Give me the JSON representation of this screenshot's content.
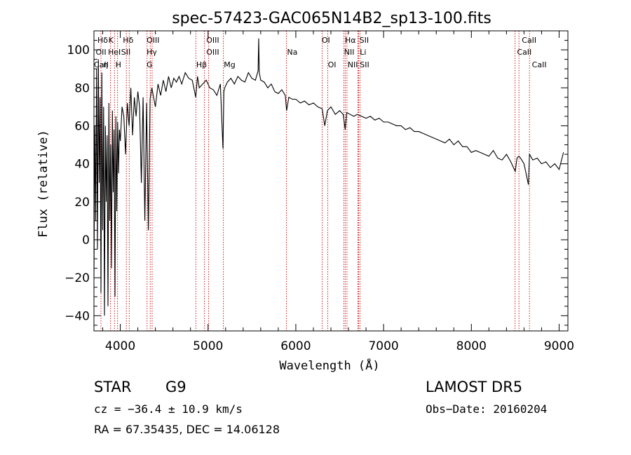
{
  "chart_data": {
    "type": "line",
    "title": "spec-57423-GAC065N14B2_sp13-100.fits",
    "xlabel": "Wavelength (Å)",
    "ylabel": "Flux (relative)",
    "xlim": [
      3700,
      9100
    ],
    "ylim": [
      -48,
      110
    ],
    "xticks": [
      4000,
      5000,
      6000,
      7000,
      8000,
      9000
    ],
    "yticks": [
      -40,
      -20,
      0,
      20,
      40,
      60,
      80,
      100
    ],
    "xtick_labels": [
      "4000",
      "5000",
      "6000",
      "7000",
      "8000",
      "9000"
    ],
    "ytick_labels": [
      "−40",
      "−20",
      "0",
      "20",
      "40",
      "60",
      "80",
      "100"
    ],
    "grid": false,
    "series": [
      {
        "x": [
          3700,
          3710,
          3720,
          3730,
          3740,
          3750,
          3760,
          3770,
          3780,
          3790,
          3800,
          3810,
          3820,
          3830,
          3840,
          3850,
          3860,
          3870,
          3880,
          3890,
          3900,
          3910,
          3920,
          3930,
          3940,
          3950,
          3960,
          3970,
          3980,
          3990,
          4000,
          4020,
          4040,
          4060,
          4080,
          4100,
          4120,
          4140,
          4160,
          4180,
          4200,
          4220,
          4240,
          4260,
          4280,
          4300,
          4320,
          4340,
          4360,
          4380,
          4400,
          4430,
          4460,
          4490,
          4520,
          4550,
          4580,
          4610,
          4640,
          4670,
          4700,
          4740,
          4780,
          4820,
          4860,
          4880,
          4900,
          4940,
          4980,
          5020,
          5060,
          5100,
          5140,
          5170,
          5180,
          5190,
          5220,
          5260,
          5300,
          5340,
          5380,
          5420,
          5460,
          5500,
          5540,
          5570,
          5577,
          5584,
          5600,
          5640,
          5680,
          5720,
          5760,
          5800,
          5840,
          5880,
          5895,
          5920,
          5960,
          6000,
          6050,
          6100,
          6150,
          6200,
          6250,
          6300,
          6330,
          6360,
          6400,
          6450,
          6500,
          6540,
          6563,
          6580,
          6620,
          6660,
          6700,
          6750,
          6800,
          6850,
          6900,
          6950,
          7000,
          7050,
          7100,
          7150,
          7200,
          7250,
          7300,
          7350,
          7400,
          7450,
          7500,
          7550,
          7600,
          7650,
          7700,
          7750,
          7800,
          7850,
          7900,
          7950,
          8000,
          8050,
          8100,
          8150,
          8200,
          8250,
          8300,
          8350,
          8400,
          8450,
          8500,
          8520,
          8542,
          8560,
          8600,
          8650,
          8662,
          8700,
          8750,
          8800,
          8850,
          8900,
          8950,
          9000,
          9050
        ],
        "y": [
          -20,
          60,
          10,
          90,
          -5,
          95,
          30,
          75,
          -28,
          88,
          5,
          70,
          -40,
          60,
          20,
          55,
          -35,
          72,
          10,
          50,
          -15,
          68,
          25,
          58,
          -30,
          65,
          15,
          62,
          35,
          58,
          52,
          70,
          65,
          45,
          72,
          60,
          80,
          55,
          75,
          65,
          78,
          70,
          30,
          75,
          10,
          72,
          5,
          74,
          80,
          75,
          70,
          82,
          76,
          84,
          78,
          86,
          80,
          85,
          83,
          86,
          82,
          88,
          85,
          84,
          75,
          86,
          80,
          82,
          84,
          80,
          79,
          76,
          82,
          48,
          78,
          80,
          83,
          85,
          82,
          86,
          84,
          83,
          88,
          85,
          84,
          89,
          106,
          88,
          84,
          83,
          80,
          82,
          78,
          77,
          79,
          76,
          68,
          75,
          74,
          74,
          72,
          73,
          71,
          72,
          70,
          69,
          60,
          68,
          70,
          66,
          68,
          66,
          58,
          67,
          66,
          65,
          66,
          65,
          64,
          65,
          63,
          64,
          62,
          62,
          61,
          60,
          60,
          58,
          59,
          57,
          57,
          56,
          55,
          54,
          53,
          52,
          51,
          53,
          50,
          52,
          49,
          49,
          46,
          47,
          46,
          45,
          44,
          47,
          43,
          42,
          45,
          41,
          36,
          43,
          44,
          43,
          40,
          29,
          45,
          42,
          43,
          40,
          41,
          38,
          40,
          37,
          46
        ]
      }
    ],
    "line_markers": [
      {
        "label": "Hδ",
        "wave": 3780
      },
      {
        "label": "CaII K",
        "wave": 3934
      },
      {
        "label": "CaII H",
        "wave": 3969
      },
      {
        "label": "HeI",
        "wave": 3889
      },
      {
        "label": "SII",
        "wave": 4069
      },
      {
        "label": "Hδ",
        "wave": 4102
      },
      {
        "label": "Hγ",
        "wave": 4341
      },
      {
        "label": "OIII",
        "wave": 4363
      },
      {
        "label": "G",
        "wave": 4305
      },
      {
        "label": "Hβ",
        "wave": 4861
      },
      {
        "label": "OIII",
        "wave": 4959
      },
      {
        "label": "OIII",
        "wave": 5007
      },
      {
        "label": "Mg",
        "wave": 5175
      },
      {
        "label": "Na",
        "wave": 5893
      },
      {
        "label": "OI",
        "wave": 6300
      },
      {
        "label": "OI",
        "wave": 6364
      },
      {
        "label": "NII",
        "wave": 6548
      },
      {
        "label": "Hα",
        "wave": 6563
      },
      {
        "label": "NII",
        "wave": 6583
      },
      {
        "label": "Li",
        "wave": 6708
      },
      {
        "label": "SII",
        "wave": 6716
      },
      {
        "label": "SII",
        "wave": 6731
      },
      {
        "label": "CaII",
        "wave": 8498
      },
      {
        "label": "CaII",
        "wave": 8542
      },
      {
        "label": "CaII",
        "wave": 8662
      }
    ],
    "line_labels": [
      {
        "text": "Hδ",
        "row": 0,
        "wave": 3740
      },
      {
        "text": "K",
        "row": 0,
        "wave": 3865
      },
      {
        "text": "Hδ",
        "row": 0,
        "wave": 4030
      },
      {
        "text": "OIII",
        "row": 0,
        "wave": 4300
      },
      {
        "text": "OIII",
        "row": 0,
        "wave": 4980
      },
      {
        "text": "OI",
        "row": 0,
        "wave": 6295
      },
      {
        "text": "Hα",
        "row": 0,
        "wave": 6560
      },
      {
        "text": "SII",
        "row": 0,
        "wave": 6725
      },
      {
        "text": "CaII",
        "row": 0,
        "wave": 8575
      },
      {
        "text": "OII",
        "row": 1,
        "wave": 3720
      },
      {
        "text": "HeI",
        "row": 1,
        "wave": 3860
      },
      {
        "text": "SII",
        "row": 1,
        "wave": 4010
      },
      {
        "text": "Hγ",
        "row": 1,
        "wave": 4300
      },
      {
        "text": "OIII",
        "row": 1,
        "wave": 4980
      },
      {
        "text": "Na",
        "row": 1,
        "wave": 5900
      },
      {
        "text": "NII",
        "row": 1,
        "wave": 6550
      },
      {
        "text": "Li",
        "row": 1,
        "wave": 6730
      },
      {
        "text": "CaII",
        "row": 1,
        "wave": 8520
      },
      {
        "text": "CaII",
        "row": 2,
        "wave": 3700
      },
      {
        "text": "η",
        "row": 2,
        "wave": 3805
      },
      {
        "text": "H",
        "row": 2,
        "wave": 3945
      },
      {
        "text": "G",
        "row": 2,
        "wave": 4300
      },
      {
        "text": "Hβ",
        "row": 2,
        "wave": 4865
      },
      {
        "text": "Mg",
        "row": 2,
        "wave": 5180
      },
      {
        "text": "OI",
        "row": 2,
        "wave": 6365
      },
      {
        "text": "NII",
        "row": 2,
        "wave": 6590
      },
      {
        "text": "SII",
        "row": 2,
        "wave": 6730
      },
      {
        "text": "CaII",
        "row": 2,
        "wave": 8690
      }
    ],
    "colors": {
      "spectrum": "#000000",
      "markers": "#cc0000",
      "axes": "#000000"
    }
  },
  "info": {
    "object_type": "STAR",
    "subclass": "G9",
    "survey": "LAMOST DR5",
    "redshift": "cz = −36.4 ± 10.9 km/s",
    "obs_date": "Obs−Date: 20160204",
    "coords": "RA =  67.35435, DEC =  14.06128"
  }
}
